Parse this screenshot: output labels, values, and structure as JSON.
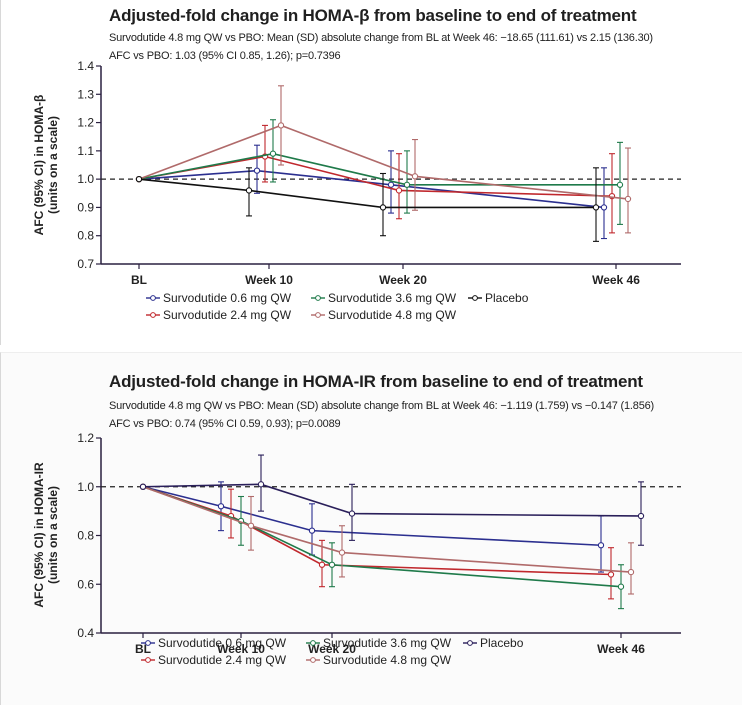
{
  "chart_data": [
    {
      "type": "line",
      "title": "Adjusted-fold change in HOMA-β from baseline to end of treatment",
      "subtitle_1": "Survodutide 4.8 mg QW vs PBO: Mean (SD) absolute change from BL at Week 46: −18.65 (111.61) vs 2.15 (136.30)",
      "subtitle_2": "AFC vs PBO: 1.03 (95% CI 0.85, 1.26); p=0.7396",
      "ylabel": "AFC (95% CI) in HOMA-β",
      "ylabel_2": "(units on a scale)",
      "xlabel": "",
      "x": [
        "BL",
        "Week 10",
        "Week 20",
        "Week 46"
      ],
      "yticks": [
        "0.7",
        "0.8",
        "0.9",
        "1.0",
        "1.1",
        "1.2",
        "1.3",
        "1.4"
      ],
      "ylim": [
        0.7,
        1.4
      ],
      "reference_line": 1.0,
      "grid": false,
      "legend_placement": "bottom",
      "series": [
        {
          "name": "Survodutide 0.6 mg QW",
          "color": "#2b2f8f",
          "values": [
            1.0,
            1.03,
            0.98,
            0.9
          ],
          "ci_low": [
            1.0,
            0.95,
            0.88,
            0.79
          ],
          "ci_high": [
            1.0,
            1.12,
            1.1,
            1.04
          ]
        },
        {
          "name": "Survodutide 2.4 mg QW",
          "color": "#c0282d",
          "values": [
            1.0,
            1.08,
            0.96,
            0.94
          ],
          "ci_low": [
            1.0,
            0.99,
            0.86,
            0.81
          ],
          "ci_high": [
            1.0,
            1.19,
            1.09,
            1.09
          ]
        },
        {
          "name": "Survodutide 3.6 mg QW",
          "color": "#1f7a4a",
          "values": [
            1.0,
            1.09,
            0.98,
            0.98
          ],
          "ci_low": [
            1.0,
            0.99,
            0.88,
            0.84
          ],
          "ci_high": [
            1.0,
            1.21,
            1.1,
            1.13
          ]
        },
        {
          "name": "Survodutide 4.8 mg QW",
          "color": "#b06a6a",
          "values": [
            1.0,
            1.19,
            1.01,
            0.93
          ],
          "ci_low": [
            1.0,
            1.05,
            0.89,
            0.81
          ],
          "ci_high": [
            1.0,
            1.33,
            1.14,
            1.11
          ]
        },
        {
          "name": "Placebo",
          "color": "#111111",
          "values": [
            1.0,
            0.96,
            0.9,
            0.9
          ],
          "ci_low": [
            1.0,
            0.87,
            0.8,
            0.78
          ],
          "ci_high": [
            1.0,
            1.04,
            1.02,
            1.04
          ]
        }
      ]
    },
    {
      "type": "line",
      "title": "Adjusted-fold change in HOMA-IR from baseline to end of treatment",
      "subtitle_1": "Survodutide 4.8 mg QW vs PBO: Mean (SD) absolute change from BL at Week 46: −1.119 (1.759) vs −0.147 (1.856)",
      "subtitle_2": "AFC vs PBO: 0.74 (95% CI 0.59, 0.93); p=0.0089",
      "ylabel": "AFC (95% CI) in HOMA-IR",
      "ylabel_2": "(units on a scale)",
      "xlabel": "",
      "x": [
        "BL",
        "Week 10",
        "Week 20",
        "Week 46"
      ],
      "yticks": [
        "0.4",
        "0.6",
        "0.8",
        "1.0",
        "1.2"
      ],
      "ylim": [
        0.4,
        1.2
      ],
      "reference_line": 1.0,
      "grid": false,
      "legend_placement": "bottom",
      "series": [
        {
          "name": "Survodutide 0.6 mg QW",
          "color": "#2b2f8f",
          "values": [
            1.0,
            0.92,
            0.82,
            0.76
          ],
          "ci_low": [
            1.0,
            0.82,
            0.72,
            0.65
          ],
          "ci_high": [
            1.0,
            1.02,
            0.93,
            0.88
          ]
        },
        {
          "name": "Survodutide 2.4 mg QW",
          "color": "#c0282d",
          "values": [
            1.0,
            0.88,
            0.68,
            0.64
          ],
          "ci_low": [
            1.0,
            0.79,
            0.59,
            0.54
          ],
          "ci_high": [
            1.0,
            0.99,
            0.78,
            0.75
          ]
        },
        {
          "name": "Survodutide 3.6 mg QW",
          "color": "#1f7a4a",
          "values": [
            1.0,
            0.86,
            0.68,
            0.59
          ],
          "ci_low": [
            1.0,
            0.76,
            0.59,
            0.5
          ],
          "ci_high": [
            1.0,
            0.96,
            0.77,
            0.68
          ]
        },
        {
          "name": "Survodutide 4.8 mg QW",
          "color": "#b06a6a",
          "values": [
            1.0,
            0.84,
            0.73,
            0.65
          ],
          "ci_low": [
            1.0,
            0.74,
            0.63,
            0.56
          ],
          "ci_high": [
            1.0,
            0.96,
            0.84,
            0.77
          ]
        },
        {
          "name": "Placebo",
          "color": "#2a1f5a",
          "values": [
            1.0,
            1.01,
            0.89,
            0.88
          ],
          "ci_low": [
            1.0,
            0.9,
            0.78,
            0.76
          ],
          "ci_high": [
            1.0,
            1.13,
            1.01,
            1.02
          ]
        }
      ]
    }
  ]
}
